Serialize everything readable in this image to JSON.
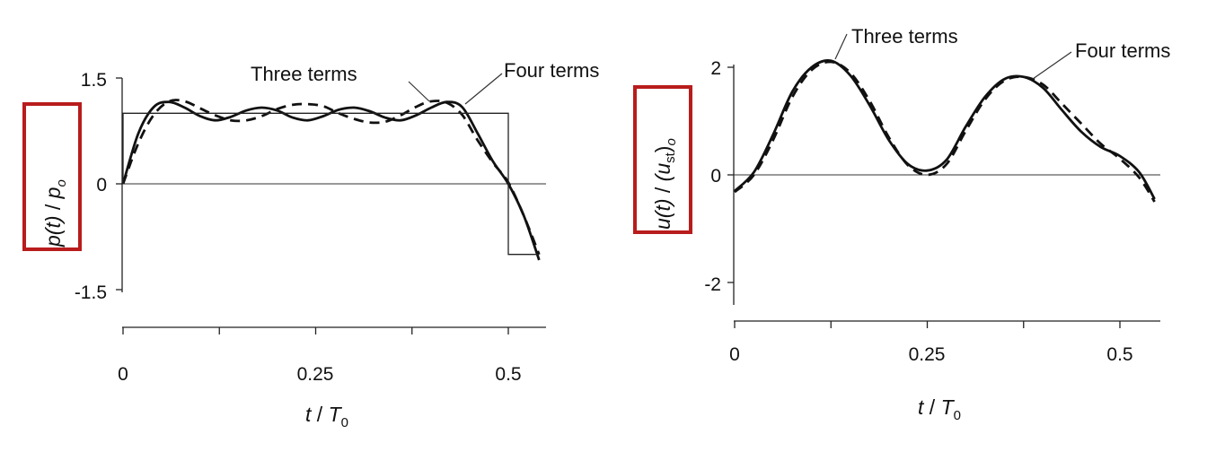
{
  "chart_data": [
    {
      "type": "line",
      "title": "",
      "xlabel_parts": [
        "t",
        " / ",
        "T",
        "0"
      ],
      "ylabel_parts": [
        "p(t)",
        " / ",
        "p",
        "o"
      ],
      "xlim": [
        0,
        0.55
      ],
      "ylim": [
        -1.5,
        1.5
      ],
      "x_tick_labels": [
        "0",
        "0.25",
        "0.5"
      ],
      "y_tick_labels": [
        "1.5",
        "0",
        "-1.5"
      ],
      "highlight_color": "#b81c1c",
      "series": [
        {
          "name": "Four terms",
          "style": "solid",
          "x": [
            0,
            0.02,
            0.04,
            0.06,
            0.08,
            0.1,
            0.12,
            0.14,
            0.16,
            0.18,
            0.2,
            0.22,
            0.24,
            0.26,
            0.28,
            0.3,
            0.32,
            0.34,
            0.36,
            0.38,
            0.4,
            0.42,
            0.44,
            0.46,
            0.48,
            0.5,
            0.52,
            0.54
          ],
          "y": [
            0,
            0.72,
            1.09,
            1.16,
            1.08,
            0.96,
            0.9,
            0.95,
            1.04,
            1.08,
            1.04,
            0.94,
            0.9,
            0.96,
            1.05,
            1.08,
            1.03,
            0.94,
            0.9,
            0.97,
            1.08,
            1.16,
            1.09,
            0.72,
            0.32,
            0.0,
            -0.45,
            -1.08
          ]
        },
        {
          "name": "Three terms",
          "style": "dashed",
          "x": [
            0,
            0.02,
            0.04,
            0.06,
            0.08,
            0.1,
            0.12,
            0.14,
            0.16,
            0.18,
            0.2,
            0.22,
            0.24,
            0.26,
            0.28,
            0.3,
            0.32,
            0.34,
            0.36,
            0.38,
            0.4,
            0.42,
            0.44,
            0.46,
            0.48,
            0.5,
            0.52,
            0.54
          ],
          "y": [
            0,
            0.58,
            0.98,
            1.17,
            1.17,
            1.07,
            0.97,
            0.9,
            0.9,
            0.96,
            1.06,
            1.12,
            1.13,
            1.1,
            1.0,
            0.92,
            0.87,
            0.88,
            0.97,
            1.09,
            1.17,
            1.15,
            0.98,
            0.62,
            0.3,
            0.02,
            -0.45,
            -1.0
          ]
        },
        {
          "name": "",
          "style": "thin",
          "x": [
            0,
            0,
            0.5,
            0.5,
            0.54
          ],
          "y": [
            0,
            1,
            1,
            -1,
            -1
          ]
        }
      ],
      "annotations": [
        {
          "text": "Three terms",
          "series": "Three terms"
        },
        {
          "text": "Four terms",
          "series": "Four terms"
        }
      ]
    },
    {
      "type": "line",
      "title": "",
      "xlabel_parts": [
        "t",
        " / ",
        "T",
        "0"
      ],
      "ylabel_parts": [
        "u(t)",
        " / ",
        "(u",
        "st",
        ")",
        "o"
      ],
      "xlim": [
        0,
        0.55
      ],
      "ylim": [
        -2.5,
        2.3
      ],
      "x_tick_labels": [
        "0",
        "0.25",
        "0.5"
      ],
      "y_tick_labels": [
        "2",
        "0",
        "-2"
      ],
      "highlight_color": "#b81c1c",
      "series": [
        {
          "name": "Four terms",
          "style": "solid",
          "x": [
            0,
            0.025,
            0.05,
            0.075,
            0.1,
            0.125,
            0.15,
            0.175,
            0.2,
            0.225,
            0.25,
            0.275,
            0.3,
            0.325,
            0.35,
            0.375,
            0.4,
            0.425,
            0.45,
            0.475,
            0.5,
            0.525,
            0.545
          ],
          "y": [
            -0.3,
            0.05,
            0.75,
            1.55,
            2.0,
            2.12,
            1.85,
            1.3,
            0.65,
            0.2,
            0.08,
            0.28,
            0.9,
            1.45,
            1.78,
            1.82,
            1.62,
            1.2,
            0.8,
            0.52,
            0.35,
            0.05,
            -0.45
          ]
        },
        {
          "name": "Three terms",
          "style": "dashed",
          "x": [
            0,
            0.025,
            0.05,
            0.075,
            0.1,
            0.125,
            0.15,
            0.175,
            0.2,
            0.225,
            0.25,
            0.275,
            0.3,
            0.325,
            0.35,
            0.375,
            0.4,
            0.425,
            0.45,
            0.475,
            0.5,
            0.525,
            0.545
          ],
          "y": [
            -0.32,
            0.0,
            0.65,
            1.45,
            1.95,
            2.1,
            1.9,
            1.38,
            0.7,
            0.18,
            0.0,
            0.2,
            0.82,
            1.4,
            1.75,
            1.82,
            1.68,
            1.32,
            0.95,
            0.58,
            0.3,
            -0.05,
            -0.5
          ]
        }
      ],
      "annotations": [
        {
          "text": "Three terms",
          "series": "Three terms"
        },
        {
          "text": "Four terms",
          "series": "Four terms"
        }
      ]
    }
  ]
}
